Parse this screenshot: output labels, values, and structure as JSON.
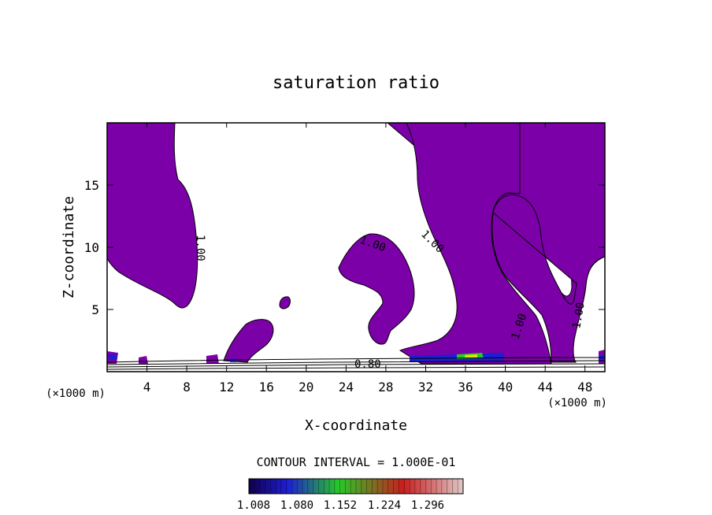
{
  "chart_data": {
    "type": "contour",
    "title": "saturation ratio",
    "xlabel": "X-coordinate",
    "ylabel": "Z-coordinate",
    "x_unit": "(×1000 m)",
    "y_unit": "(×1000 m)",
    "xlim": [
      0,
      50
    ],
    "ylim": [
      0,
      20
    ],
    "x_ticks": [
      "4",
      "8",
      "12",
      "16",
      "20",
      "24",
      "28",
      "32",
      "36",
      "40",
      "44",
      "48"
    ],
    "y_ticks": [
      "5",
      "10",
      "15"
    ],
    "contour_labels": [
      {
        "text": "1.00",
        "x": 8.5,
        "y": 10.5
      },
      {
        "text": "1.00",
        "x": 26.6,
        "y": 10.2
      },
      {
        "text": "1.00",
        "x": 32.7,
        "y": 10.3
      },
      {
        "text": "1.00",
        "x": 42.0,
        "y": 3.7
      },
      {
        "text": "1.00",
        "x": 47.3,
        "y": 4.6
      },
      {
        "text": "0.80",
        "x": 26.3,
        "y": 0.7
      }
    ],
    "contour_interval_text": "CONTOUR INTERVAL = 1.000E-01",
    "colorbar": {
      "ticks": [
        "1.008",
        "1.080",
        "1.152",
        "1.224",
        "1.296"
      ],
      "colors": [
        "#10004a",
        "#1e1ed2",
        "#28c828",
        "#c81e1e",
        "#e0c8c8"
      ]
    },
    "fill_color": "#7b00a8",
    "grid": false
  }
}
